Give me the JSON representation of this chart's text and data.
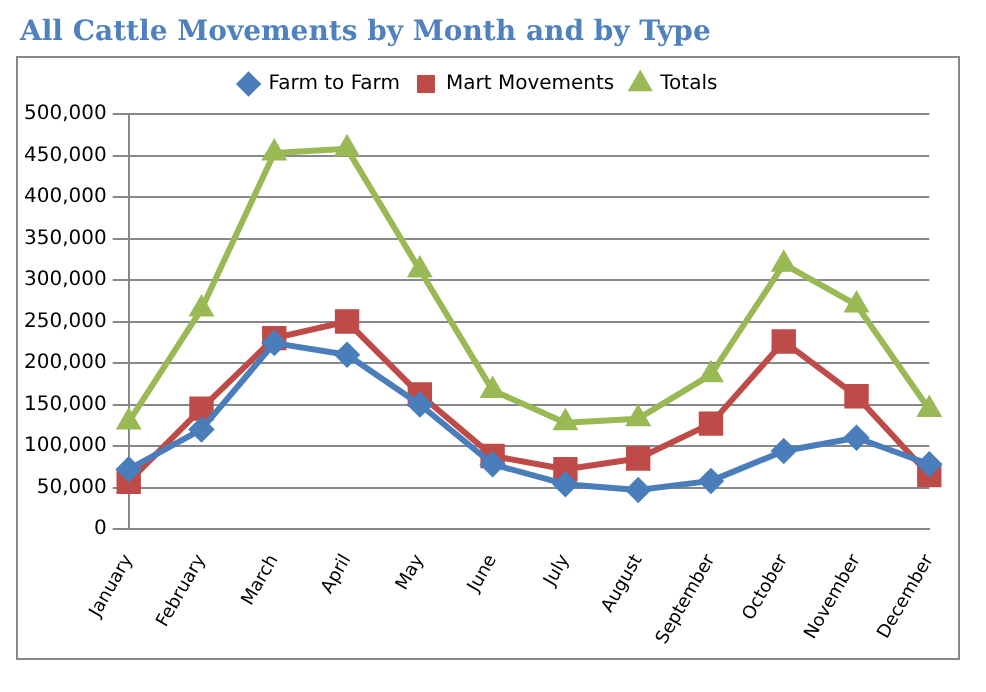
{
  "chart_data": {
    "type": "line",
    "title": "All Cattle Movements by Month and by Type",
    "categories": [
      "January",
      "February",
      "March",
      "April",
      "May",
      "June",
      "July",
      "August",
      "September",
      "October",
      "November",
      "December"
    ],
    "series": [
      {
        "name": "Farm to Farm",
        "color": "#4a7ebb",
        "marker": "diamond",
        "values": [
          72000,
          120000,
          224000,
          210000,
          150000,
          78000,
          54000,
          47000,
          58000,
          94000,
          110000,
          78000
        ]
      },
      {
        "name": "Mart Movements",
        "color": "#be4b48",
        "marker": "square",
        "values": [
          57000,
          145000,
          230000,
          250000,
          162000,
          88000,
          72000,
          85000,
          127000,
          226000,
          160000,
          65000
        ]
      },
      {
        "name": "Totals",
        "color": "#98b954",
        "marker": "triangle",
        "values": [
          129000,
          265000,
          453000,
          458000,
          312000,
          167000,
          128000,
          133000,
          186000,
          319000,
          270000,
          144000
        ]
      }
    ],
    "ylim": [
      0,
      500000
    ],
    "yticks": [
      {
        "value": 0,
        "label": "0"
      },
      {
        "value": 50000,
        "label": "50,000"
      },
      {
        "value": 100000,
        "label": "100,000"
      },
      {
        "value": 150000,
        "label": "150,000"
      },
      {
        "value": 200000,
        "label": "200,000"
      },
      {
        "value": 250000,
        "label": "250,000"
      },
      {
        "value": 300000,
        "label": "300,000"
      },
      {
        "value": 350000,
        "label": "350,000"
      },
      {
        "value": 400000,
        "label": "400,000"
      },
      {
        "value": 450000,
        "label": "450,000"
      },
      {
        "value": 500000,
        "label": "500,000"
      }
    ],
    "grid": "y",
    "legend": "top"
  }
}
